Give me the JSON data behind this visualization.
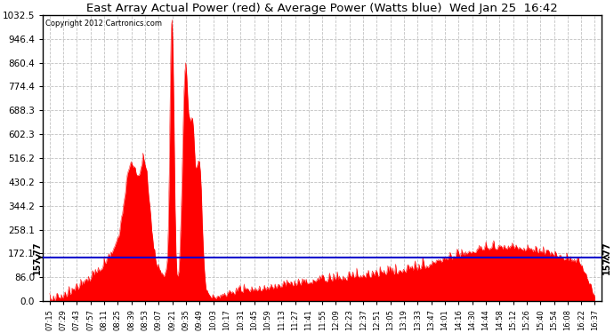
{
  "title": "East Array Actual Power (red) & Average Power (Watts blue)  Wed Jan 25  16:42",
  "copyright": "Copyright 2012 Cartronics.com",
  "avg_line_value": 157.77,
  "avg_label": "157.77",
  "ymin": 0.0,
  "ymax": 1032.5,
  "yticks": [
    0.0,
    86.0,
    172.1,
    258.1,
    344.2,
    430.2,
    516.2,
    602.3,
    688.3,
    774.4,
    860.4,
    946.4,
    1032.5
  ],
  "background_color": "#ffffff",
  "plot_bg_color": "#ffffff",
  "grid_color": "#bbbbbb",
  "line_color_red": "#ff0000",
  "line_color_blue": "#0000cc",
  "x_tick_labels": [
    "07:15",
    "07:29",
    "07:43",
    "07:57",
    "08:11",
    "08:25",
    "08:39",
    "08:53",
    "09:07",
    "09:21",
    "09:35",
    "09:49",
    "10:03",
    "10:17",
    "10:31",
    "10:45",
    "10:59",
    "11:13",
    "11:27",
    "11:41",
    "11:55",
    "12:09",
    "12:23",
    "12:37",
    "12:51",
    "13:05",
    "13:19",
    "13:33",
    "13:47",
    "14:01",
    "14:16",
    "14:30",
    "14:44",
    "14:58",
    "15:12",
    "15:26",
    "15:40",
    "15:54",
    "16:08",
    "16:22",
    "16:37"
  ]
}
